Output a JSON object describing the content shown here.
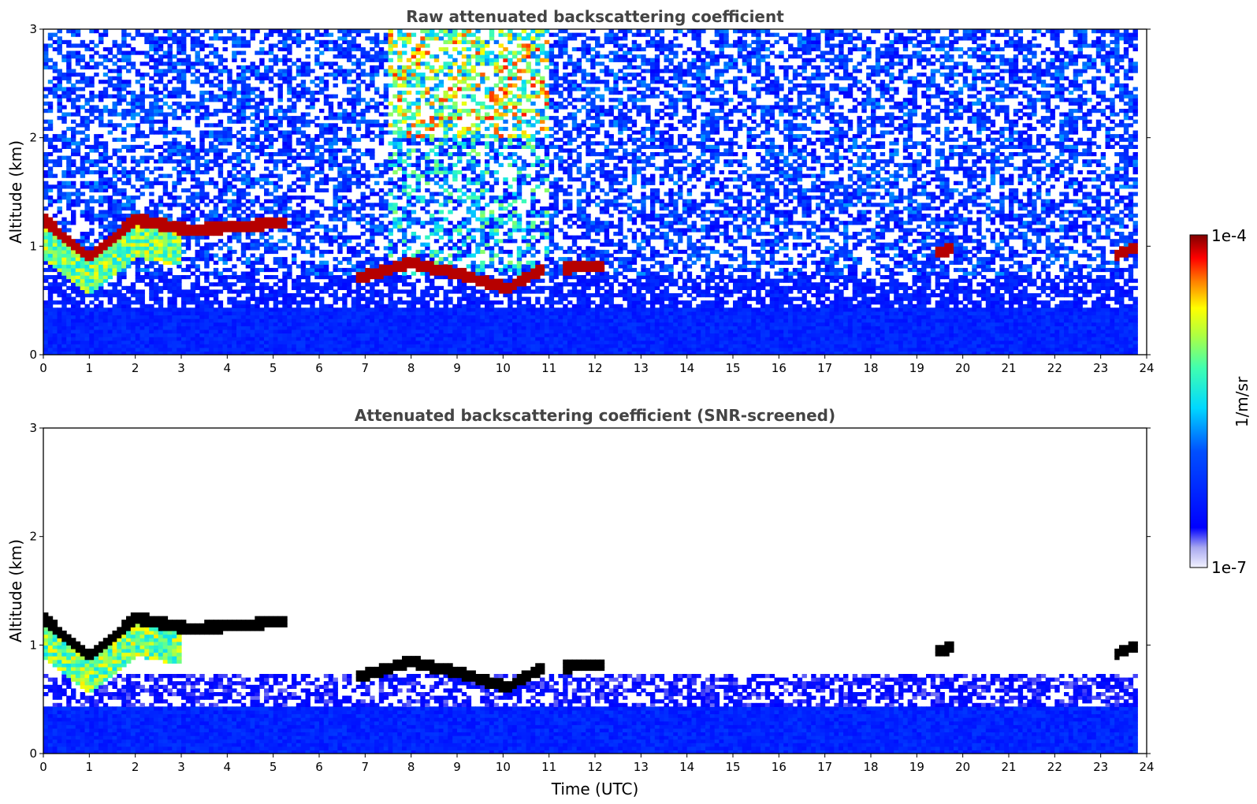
{
  "chart_data": [
    {
      "type": "heatmap",
      "id": "raw",
      "title": "Raw attenuated backscattering coefficient",
      "xlabel": "",
      "ylabel": "Altitude (km)",
      "xlim": [
        0,
        24
      ],
      "ylim": [
        0,
        3
      ],
      "xticks": [
        "0",
        "1",
        "2",
        "3",
        "4",
        "5",
        "6",
        "7",
        "8",
        "9",
        "10",
        "11",
        "12",
        "13",
        "14",
        "15",
        "16",
        "17",
        "18",
        "19",
        "20",
        "21",
        "22",
        "23",
        "24"
      ],
      "yticks": [
        "0",
        "1",
        "2",
        "3"
      ],
      "screened": false
    },
    {
      "type": "heatmap",
      "id": "screened",
      "title": "Attenuated backscattering coefficient (SNR-screened)",
      "xlabel": "Time (UTC)",
      "ylabel": "Altitude (km)",
      "xlim": [
        0,
        24
      ],
      "ylim": [
        0,
        3
      ],
      "xticks": [
        "0",
        "1",
        "2",
        "3",
        "4",
        "5",
        "6",
        "7",
        "8",
        "9",
        "10",
        "11",
        "12",
        "13",
        "14",
        "15",
        "16",
        "17",
        "18",
        "19",
        "20",
        "21",
        "22",
        "23",
        "24"
      ],
      "yticks": [
        "0",
        "1",
        "2",
        "3"
      ],
      "screened": true
    }
  ],
  "colorbar": {
    "label": "1/m/sr",
    "max_label": "1e-4",
    "min_label": "1e-7",
    "colormap": "jet"
  },
  "cloud_layers": [
    {
      "t0": 0.0,
      "t1": 1.0,
      "h0": 1.25,
      "h1": 0.9
    },
    {
      "t0": 1.0,
      "t1": 2.0,
      "h0": 0.9,
      "h1": 1.25
    },
    {
      "t0": 2.0,
      "t1": 3.2,
      "h0": 1.25,
      "h1": 1.15
    },
    {
      "t0": 3.2,
      "t1": 5.3,
      "h0": 1.15,
      "h1": 1.22
    },
    {
      "t0": 6.8,
      "t1": 8.0,
      "h0": 0.7,
      "h1": 0.85
    },
    {
      "t0": 8.0,
      "t1": 9.0,
      "h0": 0.85,
      "h1": 0.75
    },
    {
      "t0": 9.0,
      "t1": 10.2,
      "h0": 0.75,
      "h1": 0.6
    },
    {
      "t0": 10.2,
      "t1": 10.9,
      "h0": 0.65,
      "h1": 0.8
    },
    {
      "t0": 11.3,
      "t1": 12.2,
      "h0": 0.8,
      "h1": 0.82
    },
    {
      "t0": 19.4,
      "t1": 19.8,
      "h0": 0.95,
      "h1": 0.98
    },
    {
      "t0": 23.3,
      "t1": 23.8,
      "h0": 0.92,
      "h1": 1.0
    }
  ]
}
